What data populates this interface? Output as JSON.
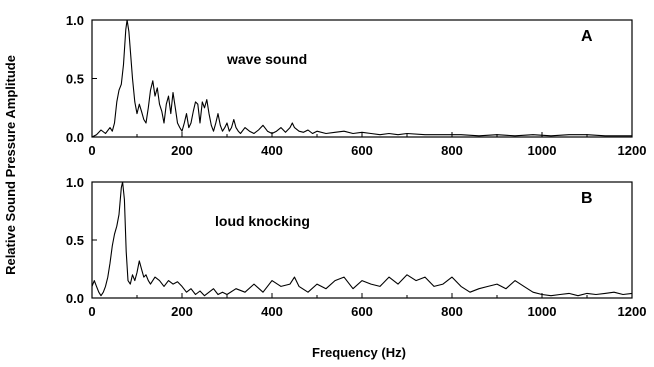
{
  "figure": {
    "ylabel": "Relative Sound Pressure Amplitude",
    "xlabel": "Frequency (Hz)"
  },
  "chart_data": [
    {
      "type": "line",
      "panel": "A",
      "annotation": "wave sound",
      "xlim": [
        0,
        1200
      ],
      "ylim": [
        0,
        1.0
      ],
      "xticks": [
        "0",
        "200",
        "400",
        "600",
        "800",
        "1000",
        "1200"
      ],
      "yticks": [
        "0.0",
        "0.5",
        "1.0"
      ],
      "grid": false,
      "color": "#000000",
      "x": [
        0,
        10,
        20,
        30,
        40,
        45,
        50,
        55,
        60,
        65,
        70,
        75,
        78,
        82,
        86,
        90,
        95,
        100,
        105,
        110,
        115,
        120,
        125,
        130,
        135,
        140,
        145,
        150,
        155,
        160,
        165,
        170,
        175,
        180,
        185,
        190,
        195,
        200,
        205,
        210,
        215,
        220,
        225,
        230,
        235,
        240,
        245,
        250,
        255,
        260,
        265,
        270,
        275,
        280,
        285,
        290,
        295,
        300,
        305,
        310,
        315,
        320,
        325,
        330,
        340,
        350,
        360,
        370,
        380,
        390,
        400,
        410,
        420,
        430,
        440,
        445,
        450,
        460,
        470,
        480,
        490,
        500,
        520,
        540,
        560,
        580,
        600,
        620,
        640,
        660,
        680,
        700,
        740,
        780,
        820,
        860,
        900,
        940,
        980,
        1020,
        1060,
        1100,
        1140,
        1180,
        1200
      ],
      "y": [
        0.0,
        0.02,
        0.06,
        0.03,
        0.08,
        0.05,
        0.12,
        0.3,
        0.4,
        0.45,
        0.62,
        0.92,
        1.0,
        0.9,
        0.7,
        0.5,
        0.3,
        0.2,
        0.28,
        0.22,
        0.15,
        0.12,
        0.25,
        0.4,
        0.48,
        0.35,
        0.42,
        0.28,
        0.22,
        0.12,
        0.28,
        0.35,
        0.2,
        0.38,
        0.25,
        0.12,
        0.08,
        0.05,
        0.12,
        0.2,
        0.08,
        0.12,
        0.22,
        0.3,
        0.28,
        0.12,
        0.3,
        0.25,
        0.32,
        0.2,
        0.1,
        0.05,
        0.12,
        0.2,
        0.1,
        0.05,
        0.08,
        0.12,
        0.05,
        0.08,
        0.15,
        0.08,
        0.05,
        0.03,
        0.08,
        0.05,
        0.03,
        0.06,
        0.1,
        0.05,
        0.03,
        0.05,
        0.08,
        0.04,
        0.08,
        0.12,
        0.08,
        0.05,
        0.04,
        0.06,
        0.03,
        0.05,
        0.03,
        0.04,
        0.05,
        0.03,
        0.04,
        0.03,
        0.02,
        0.03,
        0.02,
        0.03,
        0.02,
        0.02,
        0.02,
        0.01,
        0.02,
        0.01,
        0.02,
        0.01,
        0.02,
        0.02,
        0.01,
        0.01,
        0.01
      ]
    },
    {
      "type": "line",
      "panel": "B",
      "annotation": "loud knocking",
      "xlim": [
        0,
        1200
      ],
      "ylim": [
        0,
        1.0
      ],
      "xticks": [
        "0",
        "200",
        "400",
        "600",
        "800",
        "1000",
        "1200"
      ],
      "yticks": [
        "0.0",
        "0.5",
        "1.0"
      ],
      "grid": false,
      "color": "#000000",
      "x": [
        0,
        5,
        10,
        15,
        20,
        25,
        30,
        35,
        40,
        45,
        50,
        55,
        60,
        65,
        68,
        72,
        76,
        80,
        85,
        90,
        95,
        100,
        105,
        110,
        115,
        120,
        125,
        130,
        140,
        150,
        160,
        170,
        180,
        190,
        200,
        210,
        220,
        230,
        240,
        250,
        260,
        270,
        280,
        290,
        300,
        320,
        340,
        360,
        380,
        400,
        420,
        440,
        450,
        460,
        480,
        500,
        520,
        540,
        560,
        580,
        600,
        620,
        640,
        660,
        680,
        700,
        720,
        740,
        760,
        780,
        800,
        820,
        840,
        860,
        880,
        900,
        920,
        940,
        960,
        980,
        1000,
        1020,
        1040,
        1060,
        1080,
        1100,
        1120,
        1140,
        1160,
        1180,
        1200
      ],
      "y": [
        0.1,
        0.15,
        0.1,
        0.05,
        0.02,
        0.05,
        0.1,
        0.18,
        0.3,
        0.45,
        0.55,
        0.62,
        0.72,
        0.95,
        1.0,
        0.85,
        0.4,
        0.15,
        0.12,
        0.2,
        0.15,
        0.22,
        0.32,
        0.25,
        0.18,
        0.2,
        0.15,
        0.12,
        0.18,
        0.15,
        0.1,
        0.15,
        0.12,
        0.14,
        0.1,
        0.05,
        0.08,
        0.03,
        0.06,
        0.02,
        0.05,
        0.08,
        0.03,
        0.05,
        0.03,
        0.08,
        0.05,
        0.12,
        0.05,
        0.15,
        0.1,
        0.12,
        0.18,
        0.1,
        0.05,
        0.12,
        0.08,
        0.15,
        0.18,
        0.08,
        0.15,
        0.12,
        0.1,
        0.18,
        0.12,
        0.2,
        0.15,
        0.18,
        0.1,
        0.12,
        0.18,
        0.1,
        0.05,
        0.08,
        0.1,
        0.12,
        0.08,
        0.15,
        0.1,
        0.05,
        0.03,
        0.02,
        0.03,
        0.04,
        0.02,
        0.04,
        0.03,
        0.04,
        0.05,
        0.03,
        0.04
      ]
    }
  ]
}
